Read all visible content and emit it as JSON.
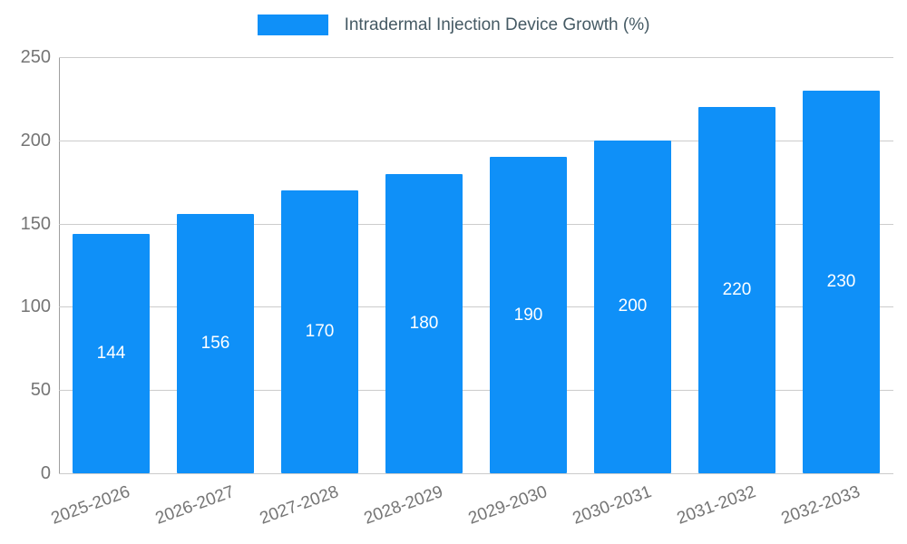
{
  "chart_data": {
    "type": "bar",
    "title": "Intradermal Injection Device Growth (%)",
    "categories": [
      "2025-2026",
      "2026-2027",
      "2027-2028",
      "2028-2029",
      "2029-2030",
      "2030-2031",
      "2031-2032",
      "2032-2033"
    ],
    "values": [
      144,
      156,
      170,
      180,
      190,
      200,
      220,
      230
    ],
    "xlabel": "",
    "ylabel": "",
    "ylim": [
      0,
      250
    ],
    "yticks": [
      0,
      50,
      100,
      150,
      200,
      250
    ],
    "grid": true,
    "legend_position": "top",
    "bar_color": "#0f90f8",
    "value_label_color": "#ffffff",
    "axis_text_color": "#757575",
    "grid_color": "#cccccc",
    "legend_text_color": "#455a64"
  }
}
